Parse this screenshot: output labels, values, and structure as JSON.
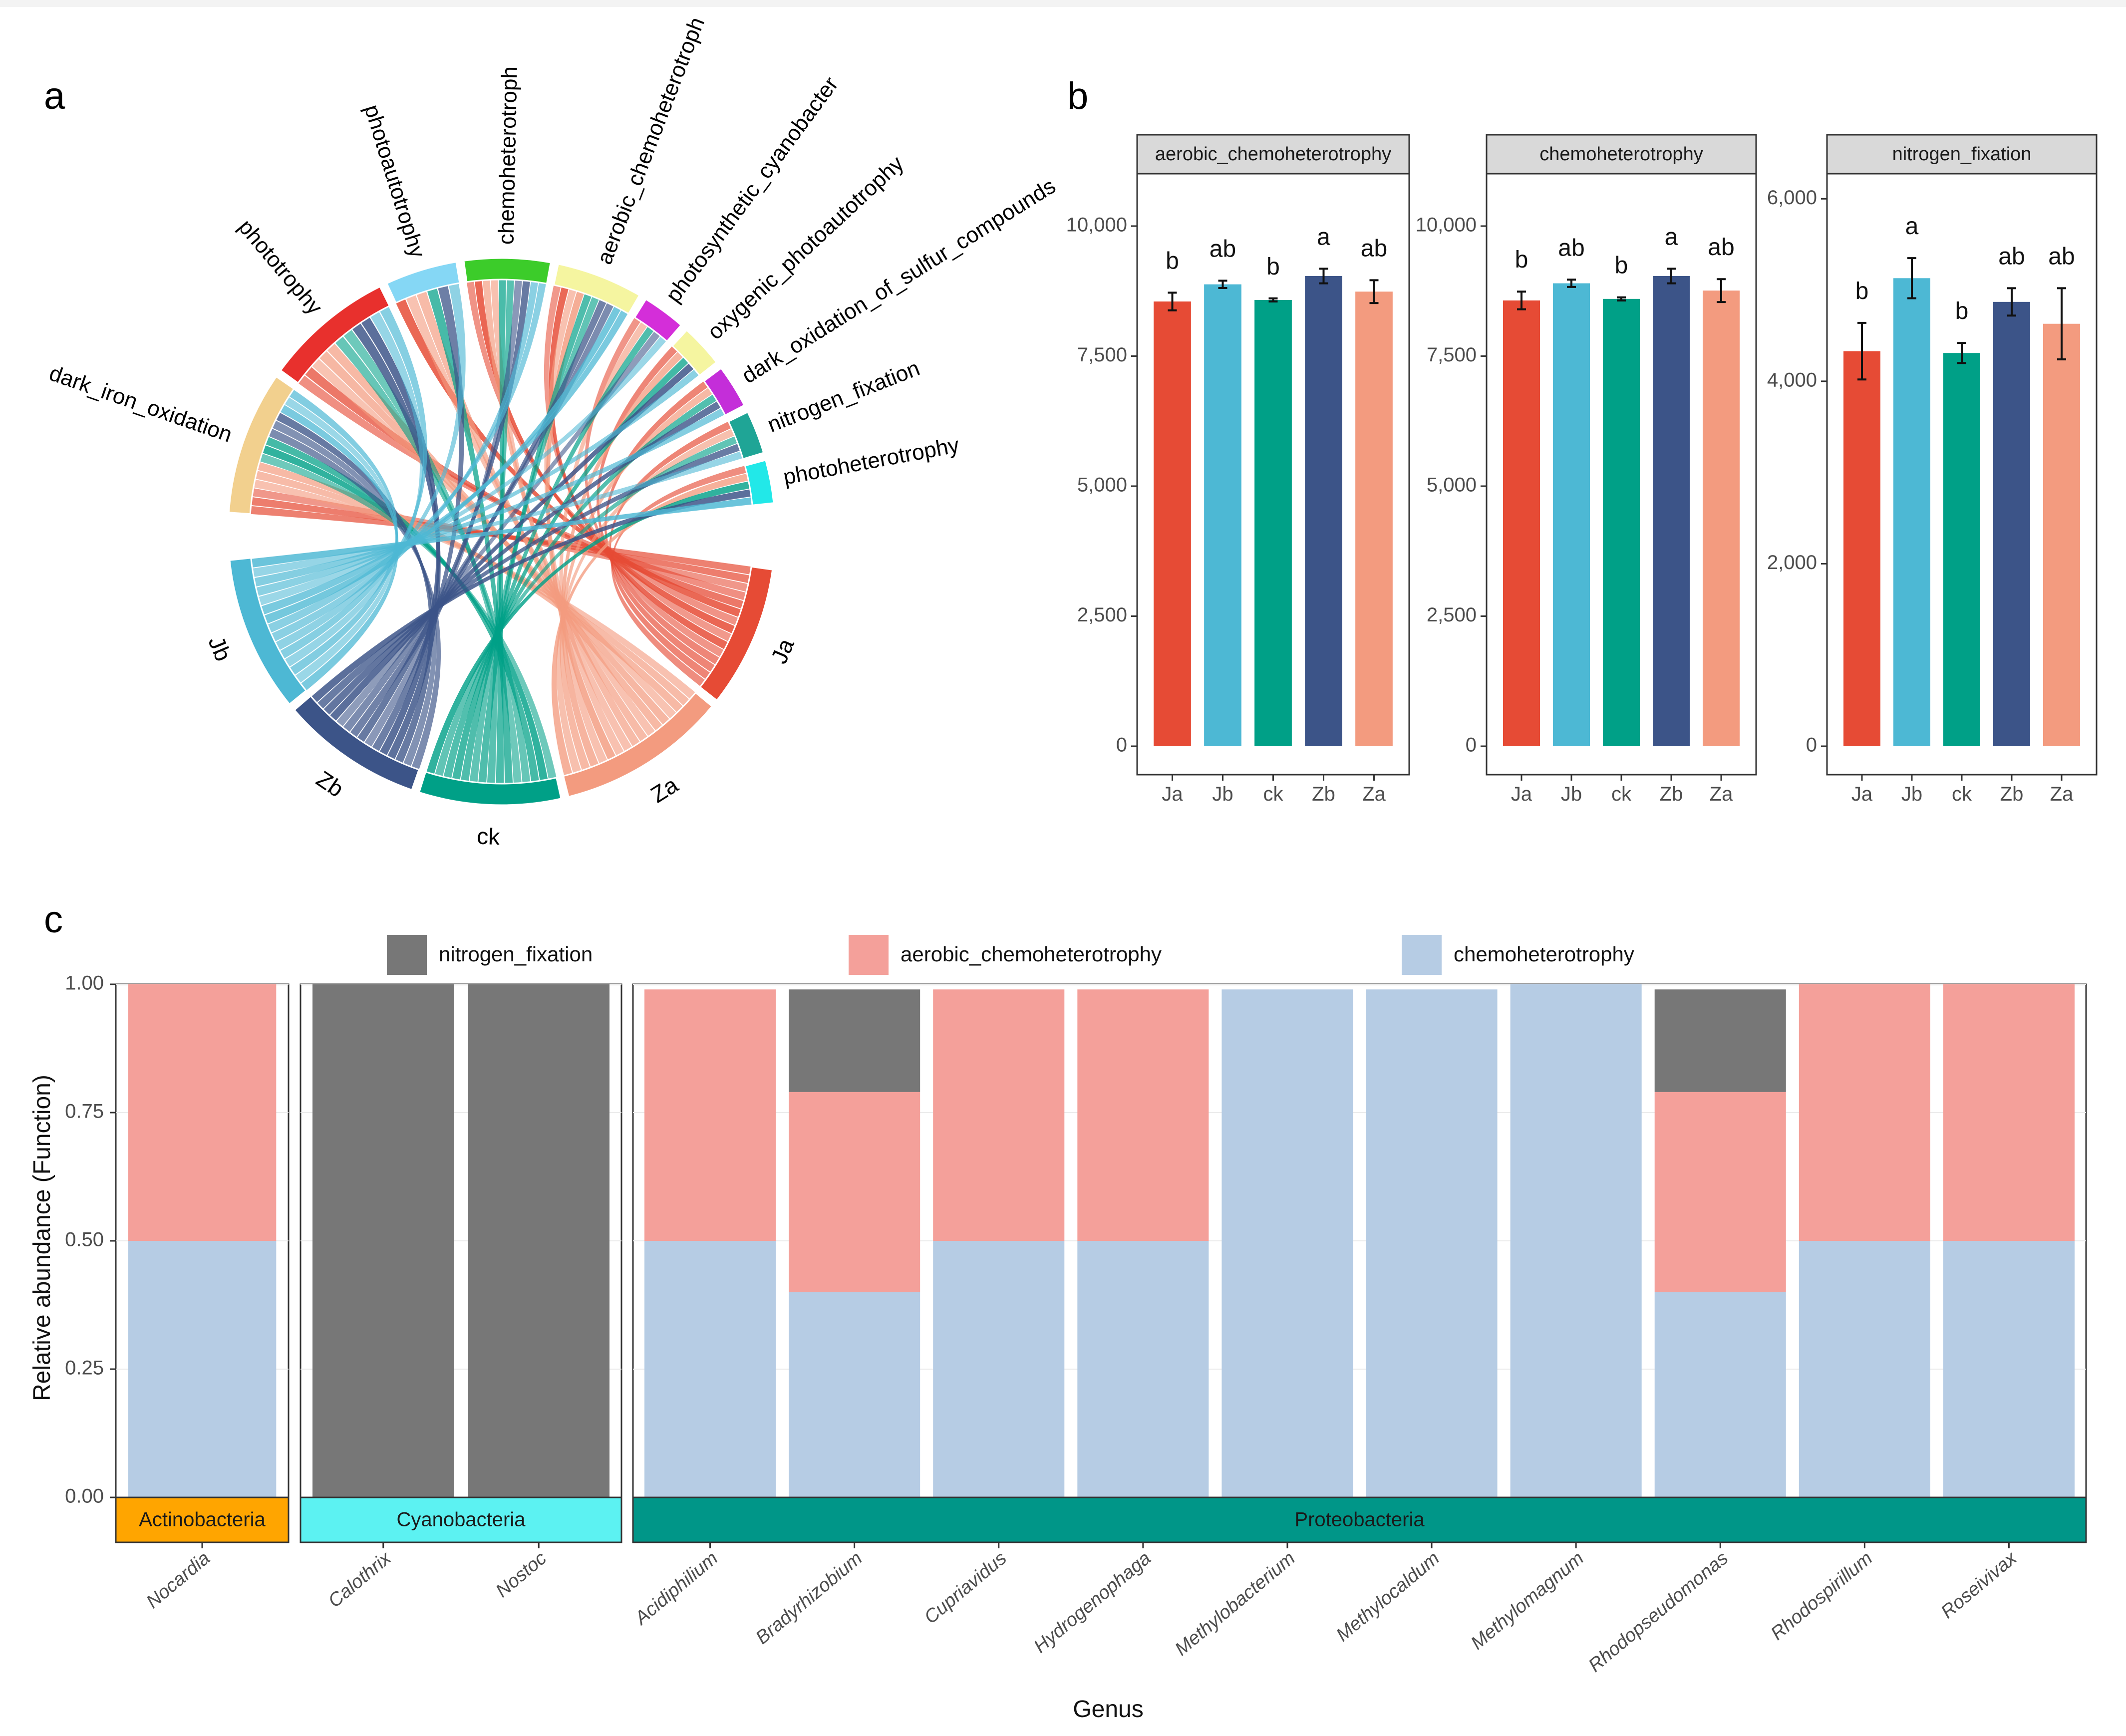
{
  "panel_labels": {
    "a": "a",
    "b": "b",
    "c": "c"
  },
  "colors": {
    "groups": {
      "Ja": "#e64b35",
      "Jb": "#4db8d4",
      "ck": "#00a087",
      "Zb": "#3c5488",
      "Za": "#f39b7f"
    },
    "functions": {
      "dark_iron_oxidation": "#f2d08e",
      "phototrophy": "#e8302d",
      "photoautotrophy": "#85d7f5",
      "chemoheterotroph": "#3ccc2a",
      "aerobic_chemoheterotroph": "#f5f5a0",
      "photosynthetic_cyanobacter": "#d42ed9",
      "oxygenic_photoautotrophy": "#f5f5a0",
      "dark_oxidation_of_sulfur_compounds": "#c42ed9",
      "nitrogen_fixation": "#1fa596",
      "photoheterotrophy": "#22e8e8"
    },
    "stack": {
      "nitrogen_fixation": "#777777",
      "aerobic_chemoheterotrophy": "#f4a09a",
      "chemoheterotrophy": "#b6cce4"
    },
    "phyla": {
      "Actinobacteria": "#ffa500",
      "Cyanobacteria": "#5cf2f2",
      "Proteobacteria": "#009688"
    }
  },
  "chart_data": [
    {
      "type": "chord",
      "panel": "a",
      "functions": [
        "dark_iron_oxidation",
        "phototrophy",
        "photoautotrophy",
        "chemoheterotroph",
        "aerobic_chemoheterotroph",
        "photosynthetic_cyanobacter",
        "oxygenic_photoautotrophy",
        "dark_oxidation_of_sulfur_compounds",
        "nitrogen_fixation",
        "photoheterotrophy"
      ],
      "function_weights": [
        10,
        9,
        5,
        6,
        6,
        3,
        3,
        3,
        3,
        3
      ],
      "groups": [
        "Ja",
        "Za",
        "ck",
        "Zb",
        "Jb"
      ],
      "group_weights": [
        10,
        12,
        10,
        10,
        11
      ]
    },
    {
      "type": "bar",
      "panel": "b",
      "categories": [
        "Ja",
        "Jb",
        "ck",
        "Zb",
        "Za"
      ],
      "facets": [
        {
          "title": "aerobic_chemoheterotrophy",
          "ylim": [
            0,
            10700
          ],
          "yticks": [
            0,
            2500,
            5000,
            7500,
            10000
          ],
          "ytick_labels": [
            "0",
            "2,500",
            "5,000",
            "7,500",
            "10,000"
          ],
          "values": [
            8550,
            8880,
            8580,
            9040,
            8740
          ],
          "errors": [
            170,
            70,
            30,
            140,
            220
          ],
          "letters": [
            "b",
            "ab",
            "b",
            "a",
            "ab"
          ]
        },
        {
          "title": "chemoheterotrophy",
          "ylim": [
            0,
            10700
          ],
          "yticks": [
            0,
            2500,
            5000,
            7500,
            10000
          ],
          "ytick_labels": [
            "0",
            "2,500",
            "5,000",
            "7,500",
            "10,000"
          ],
          "values": [
            8570,
            8900,
            8600,
            9040,
            8760
          ],
          "errors": [
            170,
            70,
            30,
            140,
            220
          ],
          "letters": [
            "b",
            "ab",
            "b",
            "a",
            "ab"
          ]
        },
        {
          "title": "nitrogen_fixation",
          "ylim": [
            0,
            6100
          ],
          "yticks": [
            0,
            2000,
            4000,
            6000
          ],
          "ytick_labels": [
            "0",
            "2,000",
            "4,000",
            "6,000"
          ],
          "values": [
            4330,
            5130,
            4310,
            4870,
            4630
          ],
          "errors": [
            310,
            220,
            110,
            150,
            390
          ],
          "letters": [
            "b",
            "a",
            "b",
            "ab",
            "ab"
          ]
        }
      ]
    },
    {
      "type": "stacked_bar",
      "panel": "c",
      "xlabel": "Genus",
      "ylabel": "Relative abundance (Function)",
      "ylim": [
        0,
        1
      ],
      "yticks": [
        0,
        0.25,
        0.5,
        0.75,
        1
      ],
      "ytick_labels": [
        "0.00",
        "0.25",
        "0.50",
        "0.75",
        "1.00"
      ],
      "legend": [
        "nitrogen_fixation",
        "aerobic_chemoheterotrophy",
        "chemoheterotrophy"
      ],
      "facets": [
        {
          "phylum": "Actinobacteria",
          "genera": [
            {
              "name": "Nocardia",
              "chemoheterotrophy": 0.5,
              "aerobic_chemoheterotrophy": 0.5,
              "nitrogen_fixation": 0
            }
          ]
        },
        {
          "phylum": "Cyanobacteria",
          "genera": [
            {
              "name": "Calothrix",
              "chemoheterotrophy": 0,
              "aerobic_chemoheterotrophy": 0,
              "nitrogen_fixation": 1
            },
            {
              "name": "Nostoc",
              "chemoheterotrophy": 0,
              "aerobic_chemoheterotrophy": 0,
              "nitrogen_fixation": 1
            }
          ]
        },
        {
          "phylum": "Proteobacteria",
          "genera": [
            {
              "name": "Acidiphilium",
              "chemoheterotrophy": 0.5,
              "aerobic_chemoheterotrophy": 0.49,
              "nitrogen_fixation": 0
            },
            {
              "name": "Bradyrhizobium",
              "chemoheterotrophy": 0.4,
              "aerobic_chemoheterotrophy": 0.39,
              "nitrogen_fixation": 0.2
            },
            {
              "name": "Cupriavidus",
              "chemoheterotrophy": 0.5,
              "aerobic_chemoheterotrophy": 0.49,
              "nitrogen_fixation": 0
            },
            {
              "name": "Hydrogenophaga",
              "chemoheterotrophy": 0.5,
              "aerobic_chemoheterotrophy": 0.49,
              "nitrogen_fixation": 0
            },
            {
              "name": "Methylobacterium",
              "chemoheterotrophy": 0.99,
              "aerobic_chemoheterotrophy": 0,
              "nitrogen_fixation": 0
            },
            {
              "name": "Methylocaldum",
              "chemoheterotrophy": 0.99,
              "aerobic_chemoheterotrophy": 0,
              "nitrogen_fixation": 0
            },
            {
              "name": "Methylomagnum",
              "chemoheterotrophy": 1.0,
              "aerobic_chemoheterotrophy": 0,
              "nitrogen_fixation": 0
            },
            {
              "name": "Rhodopseudomonas",
              "chemoheterotrophy": 0.4,
              "aerobic_chemoheterotrophy": 0.39,
              "nitrogen_fixation": 0.2
            },
            {
              "name": "Rhodospirillum",
              "chemoheterotrophy": 0.5,
              "aerobic_chemoheterotrophy": 0.5,
              "nitrogen_fixation": 0
            },
            {
              "name": "Roseivivax",
              "chemoheterotrophy": 0.5,
              "aerobic_chemoheterotrophy": 0.5,
              "nitrogen_fixation": 0
            }
          ]
        }
      ]
    }
  ]
}
